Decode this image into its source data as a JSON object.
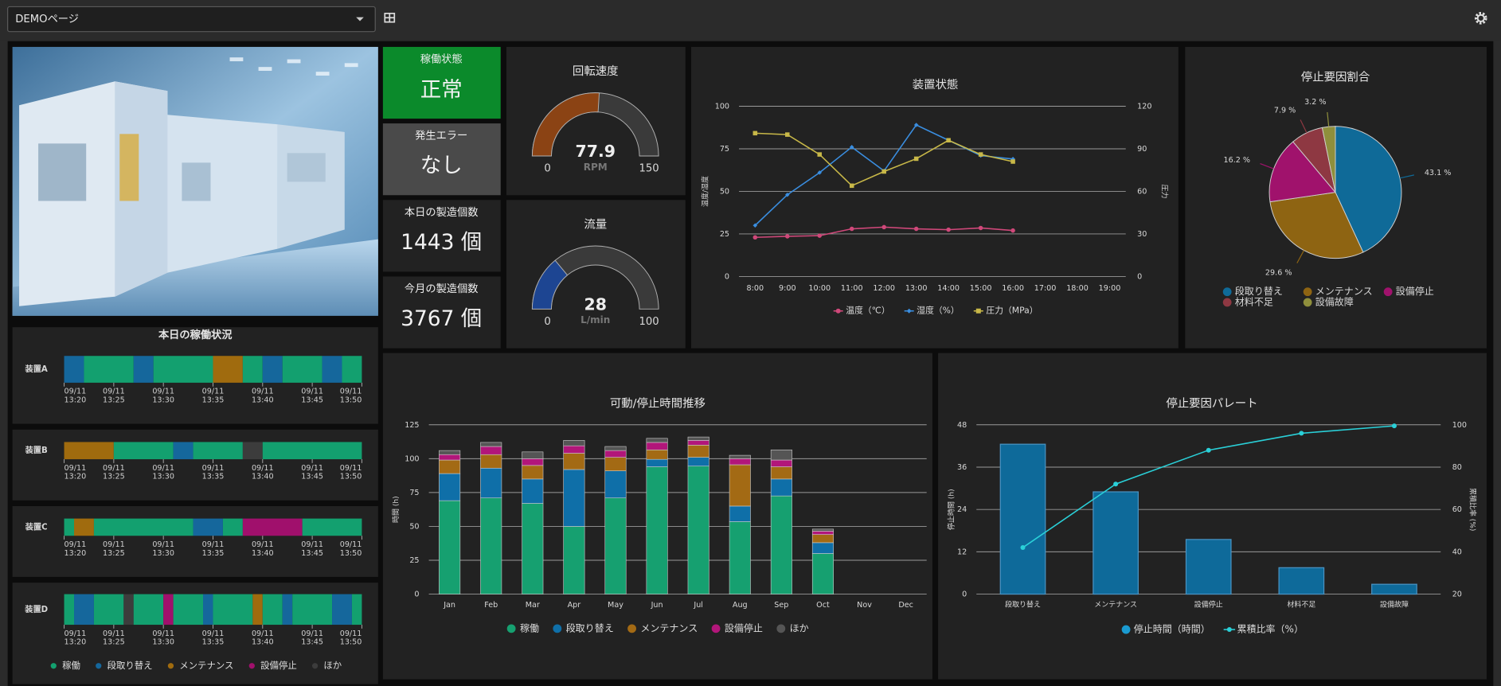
{
  "header": {
    "page_select": "DEMOページ"
  },
  "status_tiles": [
    {
      "label": "稼働状態",
      "value": "正常",
      "color": "#0b8a2b"
    },
    {
      "label": "発生エラー",
      "value": "なし",
      "color": "#4a4a4a"
    },
    {
      "label": "本日の製造個数",
      "value": "1443 個"
    },
    {
      "label": "今月の製造個数",
      "value": "3767 個"
    }
  ],
  "chart_data": [
    {
      "type": "gauge",
      "title": "回転速度",
      "value": 77.9,
      "unit": "RPM",
      "ylim": [
        0,
        150
      ],
      "color": "#8b4314"
    },
    {
      "type": "gauge",
      "title": "流量",
      "value": 28,
      "unit": "L/min",
      "ylim": [
        0,
        100
      ],
      "color": "#1d4592"
    },
    {
      "type": "line",
      "title": "装置状態",
      "ylabel": "温度/湿度",
      "y2label": "圧力",
      "categories": [
        "8:00",
        "9:00",
        "10:00",
        "11:00",
        "12:00",
        "13:00",
        "14:00",
        "15:00",
        "16:00",
        "17:00",
        "18:00",
        "19:00"
      ],
      "series": [
        {
          "name": "温度（℃）",
          "color": "#d0487a",
          "marker": "circle",
          "values": [
            23,
            23.6,
            24,
            28,
            29,
            28,
            27.5,
            28.5,
            27,
            null,
            null,
            null
          ]
        },
        {
          "name": "湿度（%）",
          "color": "#3a8ee0",
          "marker": "diamond",
          "values": [
            30,
            48,
            61,
            76,
            62,
            89,
            80,
            71,
            69,
            null,
            null,
            null
          ]
        },
        {
          "name": "圧力（MPa）",
          "color": "#c8b848",
          "marker": "square",
          "axis": "y2",
          "values": [
            101,
            100,
            86,
            64,
            74,
            83,
            96,
            86,
            81,
            null,
            null,
            null
          ]
        }
      ],
      "ylim": [
        0,
        100
      ],
      "yticks": [
        0,
        25,
        50,
        75,
        100
      ],
      "y2lim": [
        0,
        120
      ],
      "y2ticks": [
        0,
        30,
        60,
        90,
        120
      ],
      "grid": true
    },
    {
      "type": "pie",
      "title": "停止要因割合",
      "categories": [
        "段取り替え",
        "メンテナンス",
        "設備停止",
        "材料不足",
        "設備故障"
      ],
      "values": [
        43.1,
        29.6,
        16.2,
        7.9,
        3.2
      ],
      "value_labels": [
        "43.1 %",
        "29.6 %",
        "16.2 %",
        "7.9 %",
        "3.2 %"
      ],
      "colors": [
        "#0f6a98",
        "#8e6412",
        "#a0126c",
        "#8e3842",
        "#8f8f3c"
      ]
    },
    {
      "type": "stacked_bar",
      "title": "可動/停止時間推移",
      "ylabel": "時間 (h)",
      "categories": [
        "Jan",
        "Feb",
        "Mar",
        "Apr",
        "May",
        "Jun",
        "Jul",
        "Aug",
        "Sep",
        "Oct",
        "Nov",
        "Dec"
      ],
      "series": [
        {
          "name": "稼働",
          "color": "#16a070",
          "values": [
            69,
            71,
            67,
            50,
            71,
            94,
            94.5,
            53.5,
            72.5,
            30,
            null,
            null
          ]
        },
        {
          "name": "段取り替え",
          "color": "#0f6fa8",
          "values": [
            20,
            22,
            18,
            42,
            20,
            5.5,
            6.5,
            11.5,
            12.5,
            8,
            null,
            null
          ]
        },
        {
          "name": "メンテナンス",
          "color": "#a36a14",
          "values": [
            10,
            10,
            10,
            12,
            10,
            7,
            9,
            30.5,
            9,
            6,
            null,
            null
          ]
        },
        {
          "name": "設備停止",
          "color": "#b2167a",
          "values": [
            4,
            6,
            5,
            5.5,
            5,
            5.5,
            3.5,
            4.5,
            5,
            2.5,
            null,
            null
          ]
        },
        {
          "name": "ほか",
          "color": "#555555",
          "values": [
            3,
            3,
            5,
            4,
            3,
            3,
            2.5,
            2.5,
            7.5,
            1.5,
            null,
            null
          ]
        }
      ],
      "ylim": [
        0,
        125
      ],
      "yticks": [
        0,
        25,
        50,
        75,
        100,
        125
      ],
      "grid": true
    },
    {
      "type": "pareto",
      "title": "停止要因パレート",
      "ylabel": "停止時間 (h)",
      "y2label": "累積比率 (%)",
      "categories": [
        "段取り替え",
        "メンテナンス",
        "設備停止",
        "材料不足",
        "設備故障"
      ],
      "series": [
        {
          "name": "停止時間（時間）",
          "color": "#0e6a9a",
          "values": [
            42.5,
            29,
            15.5,
            7.5,
            2.8
          ]
        },
        {
          "name": "累積比率（%）",
          "color": "#2ad0d8",
          "axis": "y2",
          "values": [
            42,
            72,
            88,
            96,
            99.5
          ]
        }
      ],
      "ylim": [
        0,
        48
      ],
      "yticks": [
        0,
        12,
        24,
        36,
        48
      ],
      "y2lim": [
        20,
        100
      ],
      "y2ticks": [
        20,
        40,
        60,
        80,
        100
      ],
      "grid": true
    },
    {
      "type": "timeline",
      "title": "本日の稼働状況",
      "states": [
        {
          "name": "稼働",
          "color": "#13a06f"
        },
        {
          "name": "段取り替え",
          "color": "#15679c"
        },
        {
          "name": "メンテナンス",
          "color": "#a06b0e"
        },
        {
          "name": "設備停止",
          "color": "#a0106c"
        },
        {
          "name": "ほか",
          "color": "#3c3c3c"
        }
      ],
      "xlim": [
        800,
        830
      ],
      "xticks": [
        {
          "value": 800,
          "label": [
            "09/11",
            "13:20"
          ]
        },
        {
          "value": 805,
          "label": [
            "09/11",
            "13:25"
          ]
        },
        {
          "value": 810,
          "label": [
            "09/11",
            "13:30"
          ]
        },
        {
          "value": 815,
          "label": [
            "09/11",
            "13:35"
          ]
        },
        {
          "value": 820,
          "label": [
            "09/11",
            "13:40"
          ]
        },
        {
          "value": 825,
          "label": [
            "09/11",
            "13:45"
          ]
        },
        {
          "value": 830,
          "label": [
            "09/11",
            "13:50"
          ]
        }
      ],
      "devices": [
        {
          "name": "装置A",
          "segments": [
            {
              "state": "段取り替え",
              "start": 800,
              "end": 802
            },
            {
              "state": "稼働",
              "start": 802,
              "end": 807
            },
            {
              "state": "段取り替え",
              "start": 807,
              "end": 809
            },
            {
              "state": "稼働",
              "start": 809,
              "end": 815
            },
            {
              "state": "メンテナンス",
              "start": 815,
              "end": 818
            },
            {
              "state": "稼働",
              "start": 818,
              "end": 820
            },
            {
              "state": "段取り替え",
              "start": 820,
              "end": 822
            },
            {
              "state": "稼働",
              "start": 822,
              "end": 826
            },
            {
              "state": "段取り替え",
              "start": 826,
              "end": 828
            },
            {
              "state": "稼働",
              "start": 828,
              "end": 830
            }
          ]
        },
        {
          "name": "装置B",
          "segments": [
            {
              "state": "メンテナンス",
              "start": 800,
              "end": 805
            },
            {
              "state": "稼働",
              "start": 805,
              "end": 811
            },
            {
              "state": "段取り替え",
              "start": 811,
              "end": 813
            },
            {
              "state": "稼働",
              "start": 813,
              "end": 818
            },
            {
              "state": "ほか",
              "start": 818,
              "end": 820
            },
            {
              "state": "稼働",
              "start": 820,
              "end": 830
            }
          ]
        },
        {
          "name": "装置C",
          "segments": [
            {
              "state": "稼働",
              "start": 800,
              "end": 801
            },
            {
              "state": "メンテナンス",
              "start": 801,
              "end": 803
            },
            {
              "state": "稼働",
              "start": 803,
              "end": 813
            },
            {
              "state": "段取り替え",
              "start": 813,
              "end": 816
            },
            {
              "state": "稼働",
              "start": 816,
              "end": 818
            },
            {
              "state": "設備停止",
              "start": 818,
              "end": 824
            },
            {
              "state": "稼働",
              "start": 824,
              "end": 830
            }
          ]
        },
        {
          "name": "装置D",
          "segments": [
            {
              "state": "稼働",
              "start": 800,
              "end": 801
            },
            {
              "state": "段取り替え",
              "start": 801,
              "end": 803
            },
            {
              "state": "稼働",
              "start": 803,
              "end": 806
            },
            {
              "state": "ほか",
              "start": 806,
              "end": 807
            },
            {
              "state": "稼働",
              "start": 807,
              "end": 810
            },
            {
              "state": "設備停止",
              "start": 810,
              "end": 811
            },
            {
              "state": "稼働",
              "start": 811,
              "end": 814
            },
            {
              "state": "段取り替え",
              "start": 814,
              "end": 815
            },
            {
              "state": "稼働",
              "start": 815,
              "end": 819
            },
            {
              "state": "メンテナンス",
              "start": 819,
              "end": 820
            },
            {
              "state": "稼働",
              "start": 820,
              "end": 822
            },
            {
              "state": "段取り替え",
              "start": 822,
              "end": 823
            },
            {
              "state": "稼働",
              "start": 823,
              "end": 827
            },
            {
              "state": "段取り替え",
              "start": 827,
              "end": 829
            },
            {
              "state": "稼働",
              "start": 829,
              "end": 830
            }
          ]
        }
      ]
    }
  ]
}
